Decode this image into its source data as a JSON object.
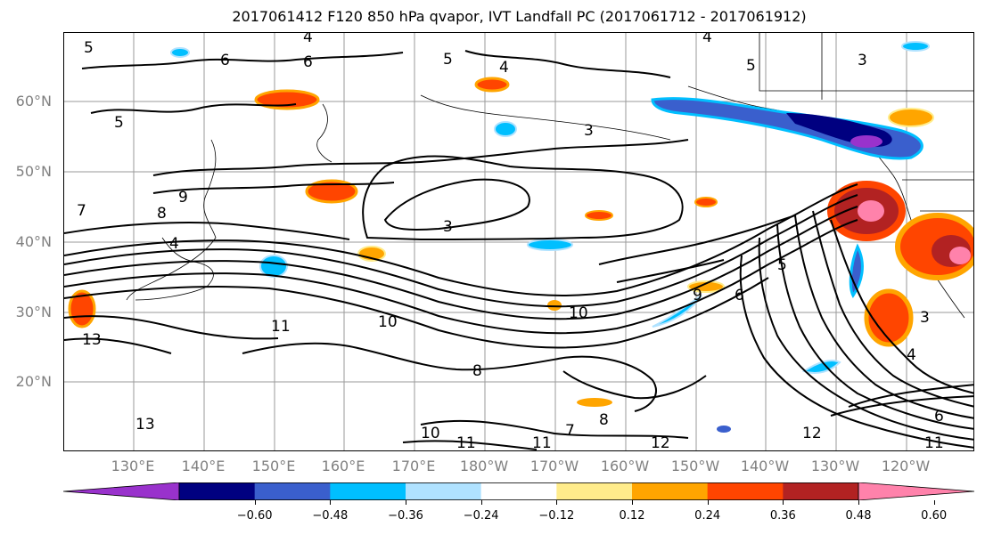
{
  "title": "2017061412 F120 850 hPa qvapor, IVT Landfall PC (2017061712 - 2017061912)",
  "lat_labels": [
    "60°N",
    "50°N",
    "40°N",
    "30°N",
    "20°N"
  ],
  "lon_labels": [
    "130°E",
    "140°E",
    "150°E",
    "160°E",
    "170°E",
    "180°W",
    "170°W",
    "160°W",
    "150°W",
    "140°W",
    "130°W",
    "120°W"
  ],
  "contour_labels": [
    "5",
    "4",
    "6",
    "6",
    "5",
    "4",
    "5",
    "4",
    "3",
    "5",
    "3",
    "9",
    "8",
    "4",
    "7",
    "3",
    "5",
    "6",
    "9",
    "10",
    "10",
    "11",
    "13",
    "8",
    "8",
    "10",
    "11",
    "11",
    "12",
    "7",
    "6",
    "12",
    "4",
    "3",
    "11",
    "13"
  ],
  "colorbar": {
    "ticks": [
      "−0.60",
      "−0.48",
      "−0.36",
      "−0.24",
      "−0.12",
      "0.12",
      "0.24",
      "0.36",
      "0.48",
      "0.60"
    ],
    "colors": [
      "#9932cc",
      "#000080",
      "#3a5fcd",
      "#00bfff",
      "#b0e2ff",
      "#ffffff",
      "#ffec8b",
      "#ffa500",
      "#ff4500",
      "#b22222",
      "#ff82ab"
    ],
    "under_color": "#9932cc",
    "over_color": "#ff82ab"
  }
}
